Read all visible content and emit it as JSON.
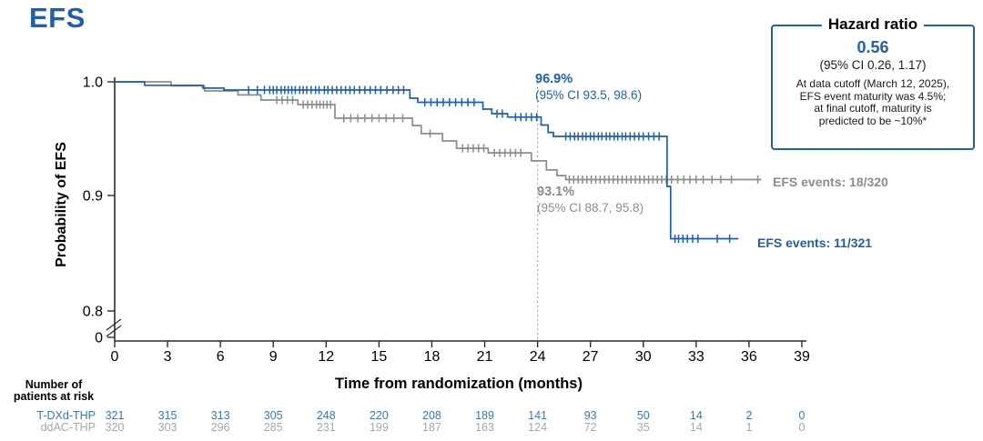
{
  "title": "EFS",
  "colors": {
    "blue": "#1e5fae",
    "gray": "#8c8c8c",
    "table_blue": "#3b76bb",
    "table_gray": "#a6a6a6",
    "axis": "#2b2b2b",
    "reference_line": "#9b9b9b"
  },
  "y_axis": {
    "label": "Probability of EFS",
    "tick_labels": [
      "1.0",
      "0.9",
      "0.8",
      "0"
    ]
  },
  "x_axis": {
    "label": "Time from randomization (months)"
  },
  "annotations": {
    "tdxd_pct": "96.9%",
    "tdxd_ci": "(95% CI 93.5, 98.6)",
    "ddac_pct": "93.1%",
    "ddac_ci": "(95% CI 88.7, 95.8)",
    "ddac_events": "EFS events: 18/320",
    "tdxd_events": "EFS events: 11/321"
  },
  "hazard_box": {
    "title": "Hazard ratio",
    "value": "0.56",
    "ci": "(95% CI 0.26, 1.17)",
    "note_lines": [
      "At data cutoff (March 12, 2025),",
      "EFS event maturity was 4.5%;",
      "at final cutoff, maturity is",
      "predicted to be ~10%*"
    ]
  },
  "risk_table": {
    "header_line1": "Number of",
    "header_line2": "patients at risk",
    "rows": [
      {
        "label": "T-DXd-THP",
        "color": "#3b76bb",
        "values": [
          321,
          315,
          313,
          305,
          248,
          220,
          208,
          189,
          141,
          93,
          50,
          14,
          2,
          0
        ]
      },
      {
        "label": "ddAC-THP",
        "color": "#a6a6a6",
        "values": [
          320,
          303,
          296,
          285,
          231,
          199,
          187,
          163,
          124,
          72,
          35,
          14,
          1,
          0
        ]
      }
    ]
  },
  "chart_data": {
    "type": "line",
    "subtype": "kaplan-meier-step",
    "title": "EFS",
    "xlabel": "Time from randomization (months)",
    "ylabel": "Probability of EFS",
    "x_ticks": [
      0,
      3,
      6,
      9,
      12,
      15,
      18,
      21,
      24,
      27,
      30,
      33,
      36,
      39
    ],
    "y_ticks": [
      1.0,
      0.9,
      0.8,
      0
    ],
    "y_axis_break": true,
    "ylim_upper_segment": [
      0.8,
      1.0
    ],
    "reference_line_month": 24,
    "hazard_ratio": {
      "value": 0.56,
      "ci": "(95% CI 0.26, 1.17)"
    },
    "series": [
      {
        "name": "T-DXd-THP",
        "color": "#1e5fae",
        "events": "11/321",
        "landmark_24mo": "96.9% (95% CI 93.5, 98.6)",
        "steps": [
          [
            0,
            1.0
          ],
          [
            1.7,
            0.997
          ],
          [
            5.0,
            0.9945
          ],
          [
            6.2,
            0.9928
          ],
          [
            16.75,
            0.9856
          ],
          [
            17.2,
            0.982
          ],
          [
            20.9,
            0.976
          ],
          [
            21.4,
            0.972
          ],
          [
            22.3,
            0.969
          ],
          [
            24.2,
            0.962
          ],
          [
            24.6,
            0.9555
          ],
          [
            24.9,
            0.952
          ],
          [
            31.35,
            0.908
          ],
          [
            31.55,
            0.862
          ]
        ],
        "end_month": 35.4,
        "censor_months": [
          7.6,
          8.1,
          8.5,
          8.8,
          9.0,
          9.2,
          9.45,
          9.65,
          9.85,
          10.05,
          10.25,
          10.5,
          10.7,
          10.9,
          11.15,
          11.4,
          11.6,
          11.9,
          12.1,
          12.35,
          12.6,
          12.85,
          13.1,
          13.35,
          13.6,
          13.9,
          14.2,
          14.5,
          14.8,
          15.1,
          15.45,
          15.8,
          16.1,
          16.4,
          17.6,
          17.95,
          18.3,
          18.65,
          19.0,
          19.35,
          19.7,
          20.05,
          20.4,
          21.7,
          22.0,
          22.75,
          23.05,
          23.35,
          23.65,
          23.95,
          25.6,
          25.85,
          26.1,
          26.3,
          26.55,
          26.75,
          27.0,
          27.2,
          27.45,
          27.65,
          27.9,
          28.1,
          28.35,
          28.55,
          28.8,
          29.0,
          29.25,
          29.5,
          29.75,
          30.0,
          30.3,
          30.6,
          30.9,
          31.8,
          32.0,
          32.25,
          32.5,
          32.8,
          33.1,
          34.2,
          34.9
        ]
      },
      {
        "name": "ddAC-THP",
        "color": "#8c8c8c",
        "events": "18/320",
        "landmark_24mo": "93.1% (95% CI 88.7, 95.8)",
        "steps": [
          [
            0,
            1.0
          ],
          [
            3.2,
            0.9965
          ],
          [
            5.1,
            0.992
          ],
          [
            7.0,
            0.9885
          ],
          [
            8.3,
            0.984
          ],
          [
            10.4,
            0.98
          ],
          [
            12.5,
            0.968
          ],
          [
            16.9,
            0.9615
          ],
          [
            17.4,
            0.9545
          ],
          [
            18.6,
            0.948
          ],
          [
            19.4,
            0.9415
          ],
          [
            21.2,
            0.9375
          ],
          [
            23.65,
            0.9305
          ],
          [
            24.5,
            0.9225
          ],
          [
            25.1,
            0.9175
          ],
          [
            25.6,
            0.914
          ]
        ],
        "end_month": 36.7,
        "censor_months": [
          9.2,
          9.5,
          9.8,
          10.1,
          10.7,
          10.95,
          11.2,
          11.45,
          11.65,
          11.85,
          12.05,
          12.25,
          13.0,
          13.4,
          13.8,
          14.2,
          14.6,
          15.0,
          15.4,
          15.85,
          16.35,
          17.9,
          19.75,
          20.05,
          20.35,
          20.65,
          20.95,
          21.55,
          21.85,
          22.15,
          22.45,
          22.75,
          23.05,
          25.8,
          26.05,
          26.3,
          26.55,
          26.8,
          27.05,
          27.3,
          27.55,
          27.8,
          28.05,
          28.3,
          28.55,
          28.8,
          29.05,
          29.3,
          29.55,
          29.8,
          30.05,
          30.3,
          30.55,
          30.8,
          31.05,
          31.3,
          31.6,
          31.95,
          32.3,
          32.65,
          33.0,
          33.4,
          33.9,
          34.4,
          35.0,
          36.5
        ]
      }
    ]
  }
}
